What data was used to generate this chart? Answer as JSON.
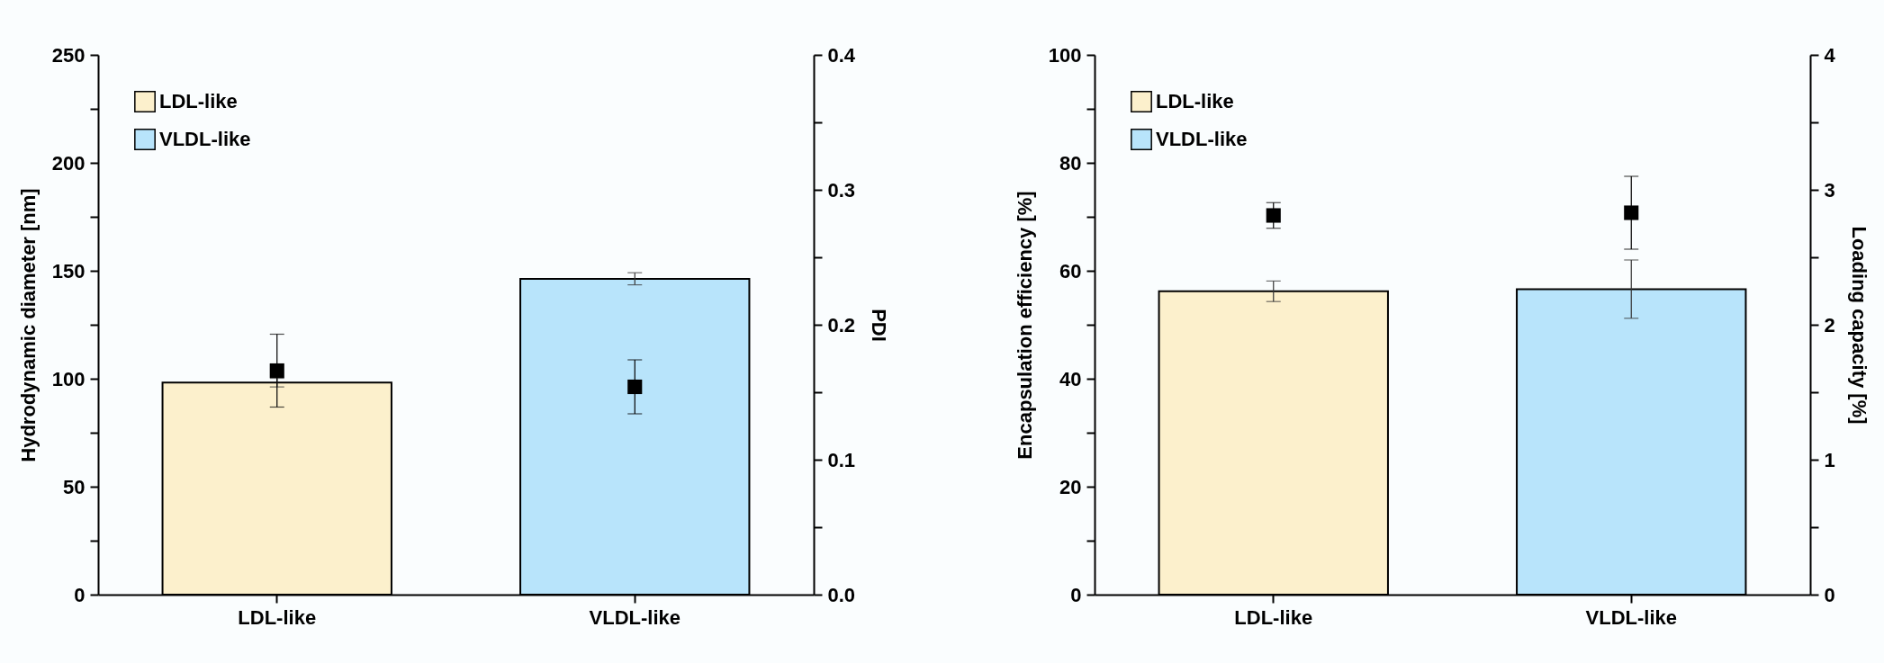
{
  "chart_data": [
    {
      "type": "bar",
      "categories": [
        "LDL-like",
        "VLDL-like"
      ],
      "ylabel": "Hydrodynamic diameter [nm]",
      "y2label": "PDI",
      "series": [
        {
          "name": "LDL-like",
          "color": "#fcf0cc",
          "values": [
            98.2,
            null
          ],
          "errors": [
            2,
            null
          ]
        },
        {
          "name": "VLDL-like",
          "color": "#b8e4fb",
          "values": [
            null,
            146.3
          ],
          "errors": [
            null,
            2.8
          ]
        },
        {
          "type": "scatter",
          "axis": "y2",
          "color": "#000000",
          "x": [
            "LDL-like",
            "VLDL-like"
          ],
          "values": [
            0.166,
            0.154
          ],
          "errors": [
            0.027,
            0.02
          ]
        }
      ],
      "ylim": [
        0,
        250
      ],
      "yticks": [
        0,
        {
          "value": 25,
          "label": null
        },
        50,
        {
          "value": 75,
          "label": null
        },
        100,
        {
          "value": 125,
          "label": null
        },
        150,
        {
          "value": 175,
          "label": null
        },
        200,
        {
          "value": 225,
          "label": null
        },
        250
      ],
      "y2lim": [
        0,
        0.4
      ],
      "y2ticks": [
        {
          "value": 0,
          "label": "0.0"
        },
        {
          "value": 0.05,
          "label": null
        },
        0.1,
        {
          "value": 0.15,
          "label": null
        },
        0.2,
        {
          "value": 0.25,
          "label": null
        },
        0.3,
        {
          "value": 0.35,
          "label": null
        },
        0.4
      ],
      "legend": "top left",
      "marker": "square",
      "grid": false
    },
    {
      "type": "bar",
      "categories": [
        "LDL-like",
        "VLDL-like"
      ],
      "ylabel": "Encapsulation efficiency [%]",
      "y2label": "Loading capacity [%]",
      "series": [
        {
          "name": "LDL-like",
          "color": "#fcf0cc",
          "values": [
            56.2,
            null
          ],
          "errors": [
            1.9,
            null
          ]
        },
        {
          "name": "VLDL-like",
          "color": "#b8e4fb",
          "values": [
            null,
            56.6
          ],
          "errors": [
            null,
            5.4
          ]
        },
        {
          "type": "scatter",
          "axis": "y2",
          "color": "#000000",
          "x": [
            "LDL-like",
            "VLDL-like"
          ],
          "values": [
            2.81,
            2.83
          ],
          "errors": [
            0.095,
            0.27
          ]
        }
      ],
      "ylim": [
        0,
        100
      ],
      "yticks": [
        0,
        {
          "value": 10,
          "label": null
        },
        20,
        {
          "value": 30,
          "label": null
        },
        40,
        {
          "value": 50,
          "label": null
        },
        60,
        {
          "value": 70,
          "label": null
        },
        80,
        {
          "value": 90,
          "label": null
        },
        100
      ],
      "y2lim": [
        0,
        4
      ],
      "y2ticks": [
        0,
        {
          "value": 0.5,
          "label": null
        },
        1,
        {
          "value": 1.5,
          "label": null
        },
        2,
        {
          "value": 2.5,
          "label": null
        },
        3,
        {
          "value": 3.5,
          "label": null
        },
        4
      ],
      "legend": "top left",
      "marker": "square",
      "grid": false
    }
  ]
}
